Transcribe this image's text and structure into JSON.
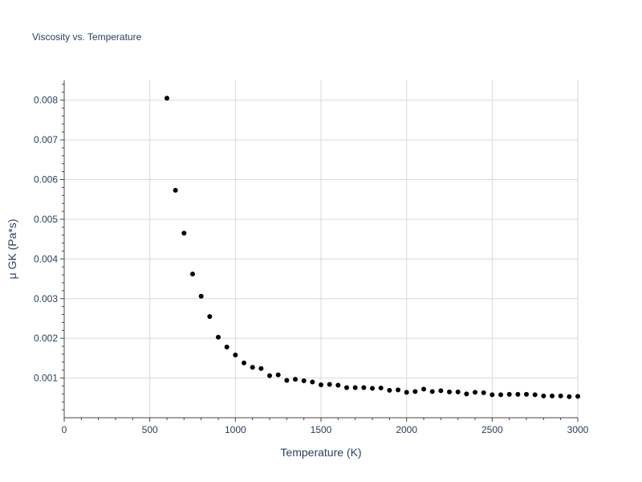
{
  "chart_data": {
    "type": "scatter",
    "title": "Viscosity vs. Temperature",
    "xlabel": "Temperature (K)",
    "ylabel": "μ GK (Pa*s)",
    "xlim": [
      0,
      3000
    ],
    "ylim": [
      0,
      0.0085
    ],
    "x_ticks": [
      0,
      500,
      1000,
      1500,
      2000,
      2500,
      3000
    ],
    "y_ticks": [
      0.001,
      0.002,
      0.003,
      0.004,
      0.005,
      0.006,
      0.007,
      0.008
    ],
    "x_tick_labels": [
      "0",
      "500",
      "1000",
      "1500",
      "2000",
      "2500",
      "3000"
    ],
    "y_tick_labels": [
      "0.001",
      "0.002",
      "0.003",
      "0.004",
      "0.005",
      "0.006",
      "0.007",
      "0.008"
    ],
    "grid": true,
    "marker_color": "#000000",
    "series": [
      {
        "name": "μ GK",
        "x": [
          600,
          650,
          700,
          750,
          800,
          850,
          900,
          950,
          1000,
          1050,
          1100,
          1150,
          1200,
          1250,
          1300,
          1350,
          1400,
          1450,
          1500,
          1550,
          1600,
          1650,
          1700,
          1750,
          1800,
          1850,
          1900,
          1950,
          2000,
          2050,
          2100,
          2150,
          2200,
          2250,
          2300,
          2350,
          2400,
          2450,
          2500,
          2550,
          2600,
          2650,
          2700,
          2750,
          2800,
          2850,
          2900,
          2950,
          3000
        ],
        "y": [
          0.00805,
          0.00573,
          0.00465,
          0.00362,
          0.00306,
          0.00255,
          0.00203,
          0.00178,
          0.00158,
          0.00138,
          0.00127,
          0.00124,
          0.00106,
          0.00108,
          0.00094,
          0.00097,
          0.00093,
          0.0009,
          0.00083,
          0.00084,
          0.00082,
          0.00076,
          0.00076,
          0.00076,
          0.00074,
          0.00075,
          0.00069,
          0.0007,
          0.00064,
          0.00066,
          0.00072,
          0.00066,
          0.00068,
          0.00065,
          0.00065,
          0.0006,
          0.00064,
          0.00063,
          0.00058,
          0.00058,
          0.00059,
          0.00059,
          0.00059,
          0.00058,
          0.00055,
          0.00055,
          0.00055,
          0.00053,
          0.00054
        ]
      }
    ]
  }
}
